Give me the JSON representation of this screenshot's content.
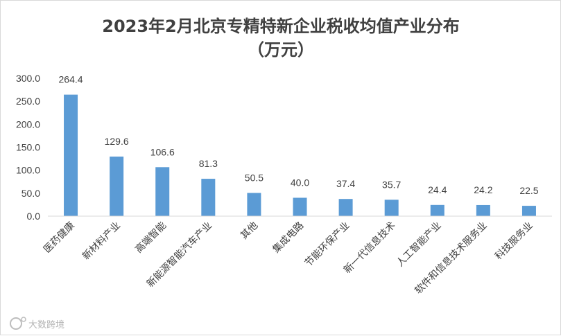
{
  "chart_data": {
    "type": "bar",
    "title": "2023年2月北京专精特新企业税收均值产业分布",
    "subtitle": "（万元）",
    "xlabel": "",
    "ylabel": "",
    "ylim": [
      0,
      300
    ],
    "yticks": [
      "0.0",
      "50.0",
      "100.0",
      "150.0",
      "200.0",
      "250.0",
      "300.0"
    ],
    "categories": [
      "医药健康",
      "新材料产业",
      "高端智能",
      "新能源智能汽车产业",
      "其他",
      "集成电路",
      "节能环保产业",
      "新一代信息技术",
      "人工智能产业",
      "软件和信息技术服务业",
      "科技服务业"
    ],
    "values": [
      264.4,
      129.6,
      106.6,
      81.3,
      50.5,
      40.0,
      37.4,
      35.7,
      24.4,
      24.2,
      22.5
    ],
    "value_labels": [
      "264.4",
      "129.6",
      "106.6",
      "81.3",
      "50.5",
      "40.0",
      "37.4",
      "35.7",
      "24.4",
      "24.2",
      "22.5"
    ],
    "grid": false,
    "legend": "none",
    "bar_color": "#5b9bd5"
  },
  "watermark": {
    "icon": "ip-logo-icon",
    "text": "大数跨境"
  }
}
